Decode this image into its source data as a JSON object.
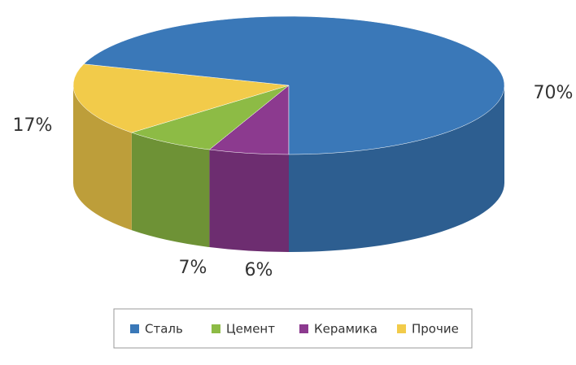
{
  "chart_data": {
    "type": "pie3d",
    "categories": [
      "Сталь",
      "Цемент",
      "Керамика",
      "Прочие"
    ],
    "values": [
      70,
      7,
      6,
      17
    ],
    "value_labels": [
      "70%",
      "7%",
      "6%",
      "17%"
    ],
    "colors": [
      "#3a78b8",
      "#8dbb45",
      "#8c3a8f",
      "#f2cb4a"
    ],
    "legend": "bottom"
  }
}
